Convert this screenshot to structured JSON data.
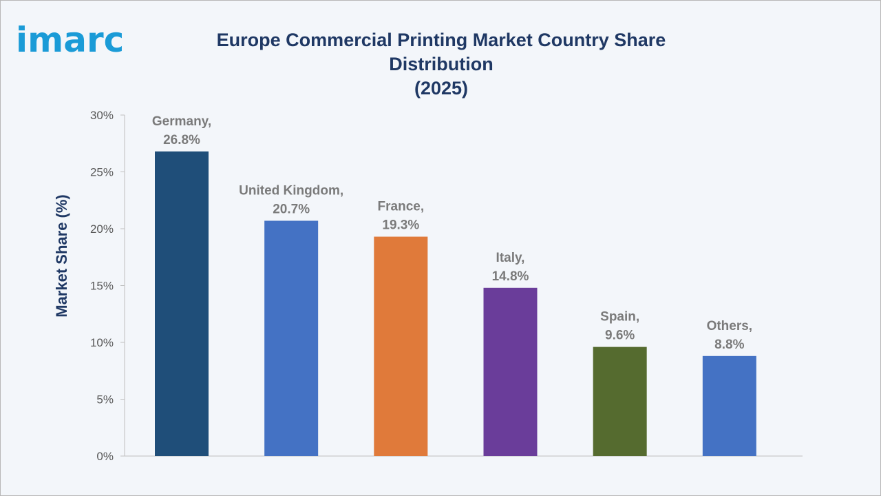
{
  "brand": {
    "logo_text": "imarc",
    "logo_color": "#1a9bd7"
  },
  "chart_data": {
    "type": "bar",
    "title": "Europe Commercial Printing Market Country Share Distribution",
    "subtitle": "(2025)",
    "xlabel": "",
    "ylabel": "Market Share (%)",
    "ylim": [
      0,
      30
    ],
    "yticks": [
      0,
      5,
      10,
      15,
      20,
      25,
      30
    ],
    "ytick_labels": [
      "0%",
      "5%",
      "10%",
      "15%",
      "20%",
      "25%",
      "30%"
    ],
    "grid": false,
    "categories": [
      "Germany",
      "United Kingdom",
      "France",
      "Italy",
      "Spain",
      "Others"
    ],
    "values": [
      26.8,
      20.7,
      19.3,
      14.8,
      9.6,
      8.8
    ],
    "data_labels": [
      [
        "Germany,",
        "26.8%"
      ],
      [
        "United Kingdom,",
        "20.7%"
      ],
      [
        "France,",
        "19.3%"
      ],
      [
        "Italy,",
        "14.8%"
      ],
      [
        "Spain,",
        "9.6%"
      ],
      [
        "Others,",
        "8.8%"
      ]
    ],
    "colors": [
      "#1f4e79",
      "#4472c4",
      "#e07a3a",
      "#6a3d9a",
      "#556b2f",
      "#4472c4"
    ]
  }
}
